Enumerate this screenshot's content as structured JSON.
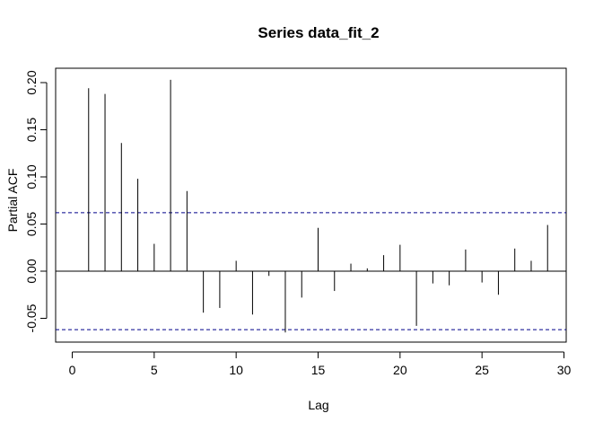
{
  "chart_data": {
    "type": "bar",
    "title": "Series  data_fit_2",
    "xlabel": "Lag",
    "ylabel": "Partial ACF",
    "xlim": [
      0,
      30
    ],
    "ylim": [
      -0.075,
      0.21
    ],
    "x_ticks": [
      0,
      5,
      10,
      15,
      20,
      25,
      30
    ],
    "x_tick_labels": [
      "0",
      "5",
      "10",
      "15",
      "20",
      "25",
      "30"
    ],
    "y_ticks": [
      -0.05,
      0.0,
      0.05,
      0.1,
      0.15,
      0.2
    ],
    "y_tick_labels": [
      "-0.05",
      "0.00",
      "0.05",
      "0.10",
      "0.15",
      "0.20"
    ],
    "confidence_bound": 0.062,
    "bound_color": "#00008b",
    "bar_color": "#000000",
    "grid": false,
    "x": [
      1,
      2,
      3,
      4,
      5,
      6,
      7,
      8,
      9,
      10,
      11,
      12,
      13,
      14,
      15,
      16,
      17,
      18,
      19,
      20,
      21,
      22,
      23,
      24,
      25,
      26,
      27,
      28,
      29
    ],
    "values": [
      0.194,
      0.188,
      0.136,
      0.098,
      0.029,
      0.203,
      0.085,
      -0.044,
      -0.039,
      0.011,
      -0.046,
      -0.005,
      -0.065,
      -0.028,
      0.046,
      -0.021,
      0.008,
      0.003,
      0.017,
      0.028,
      -0.058,
      -0.013,
      -0.015,
      0.023,
      -0.012,
      -0.025,
      0.024,
      0.011,
      0.049
    ]
  }
}
